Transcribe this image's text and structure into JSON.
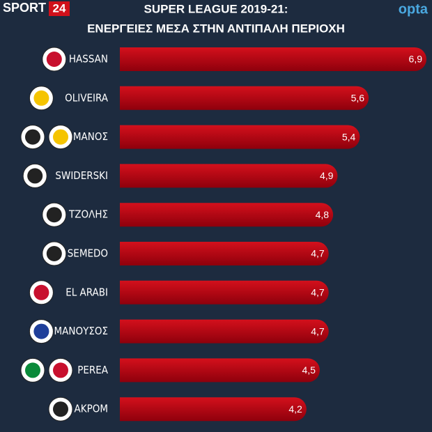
{
  "brand": {
    "name": "SPORT",
    "number": "24",
    "source": "opta"
  },
  "chart_data": {
    "type": "bar",
    "orientation": "horizontal",
    "title": [
      "SUPER LEAGUE 2019-21:",
      "ΕΝΕΡΓΕΙΕΣ ΜΕΣΑ ΣΤΗΝ ΑΝΤΙΠΑΛΗ ΠΕΡΙΟΧΗ"
    ],
    "categories": [
      "HASSAN",
      "OLIVEIRA",
      "ΜΑΝΟΣ",
      "SWIDERSKI",
      "ΤΖΟΛΗΣ",
      "SEMEDO",
      "EL ARABI",
      "ΜΑΝΟΥΣΟΣ",
      "PEREA",
      "ΑΚΡΟΜ"
    ],
    "values": [
      6.9,
      5.6,
      5.4,
      4.9,
      4.8,
      4.7,
      4.7,
      4.7,
      4.5,
      4.2
    ],
    "value_labels": [
      "6,9",
      "5,6",
      "5,4",
      "4,9",
      "4,8",
      "4,7",
      "4,7",
      "4,7",
      "4,5",
      "4,2"
    ],
    "color": "#c8000f"
  }
}
